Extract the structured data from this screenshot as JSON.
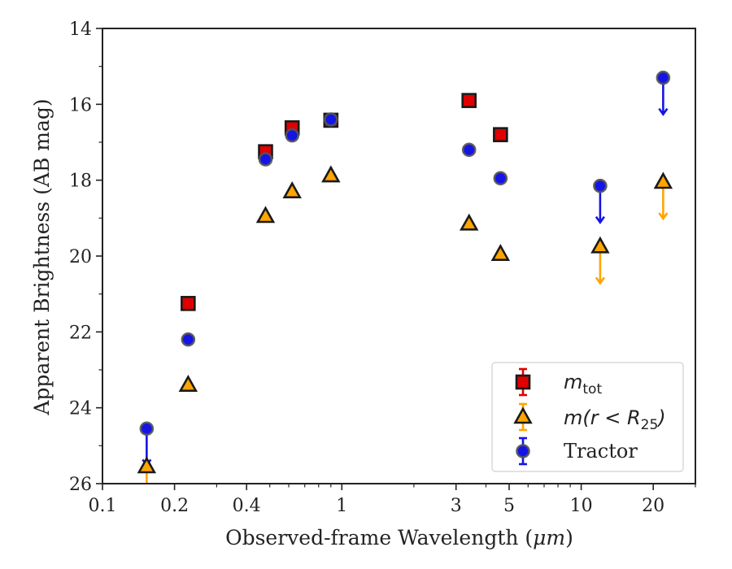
{
  "chart_data": {
    "type": "scatter",
    "xlabel_prefix": "Observed-frame Wavelength (",
    "xlabel_unit": "μm",
    "xlabel_suffix": ")",
    "ylabel": "Apparent Brightness (AB mag)",
    "xscale": "log",
    "xlim": [
      0.1,
      30
    ],
    "ylim": [
      26,
      14
    ],
    "y_inverted": true,
    "xticks": [
      {
        "value": 0.1,
        "label": "0.1"
      },
      {
        "value": 0.2,
        "label": "0.2"
      },
      {
        "value": 0.4,
        "label": "0.4"
      },
      {
        "value": 1,
        "label": "1"
      },
      {
        "value": 3,
        "label": "3"
      },
      {
        "value": 5,
        "label": "5"
      },
      {
        "value": 10,
        "label": "10"
      },
      {
        "value": 20,
        "label": "20"
      }
    ],
    "xminor": [
      0.3,
      0.5,
      0.6,
      0.7,
      0.8,
      0.9,
      2,
      4,
      6,
      7,
      8,
      9,
      30
    ],
    "yticks": [
      14,
      16,
      18,
      20,
      22,
      24,
      26
    ],
    "yminor": [
      15,
      17,
      19,
      21,
      23,
      25
    ],
    "grid": false,
    "legend_position": "lower-right",
    "series": [
      {
        "name": "m_tot",
        "legend_main": "m",
        "legend_sub": "tot",
        "marker": "square",
        "color": "#e00000",
        "edge": "#1a1a1a",
        "points": [
          {
            "x": 0.228,
            "y": 21.25
          },
          {
            "x": 0.48,
            "y": 17.25
          },
          {
            "x": 0.62,
            "y": 16.62
          },
          {
            "x": 0.9,
            "y": 16.42
          },
          {
            "x": 3.4,
            "y": 15.9
          },
          {
            "x": 4.6,
            "y": 16.8
          }
        ]
      },
      {
        "name": "m(r < R25)",
        "legend_main": "m(r < R",
        "legend_sub": "25",
        "legend_tail": ")",
        "marker": "triangle",
        "color": "#ffa500",
        "edge": "#1a1a1a",
        "points": [
          {
            "x": 0.153,
            "y": 25.55,
            "upper_limit": true
          },
          {
            "x": 0.228,
            "y": 23.4
          },
          {
            "x": 0.48,
            "y": 18.95
          },
          {
            "x": 0.62,
            "y": 18.3
          },
          {
            "x": 0.9,
            "y": 17.88
          },
          {
            "x": 3.4,
            "y": 19.15
          },
          {
            "x": 4.6,
            "y": 19.95
          },
          {
            "x": 12,
            "y": 19.75,
            "upper_limit": true
          },
          {
            "x": 22,
            "y": 18.05,
            "upper_limit": true
          }
        ]
      },
      {
        "name": "Tractor",
        "legend_main": "Tractor",
        "marker": "circle",
        "color": "#1414e6",
        "edge": "#555555",
        "points": [
          {
            "x": 0.153,
            "y": 24.55,
            "upper_limit": true
          },
          {
            "x": 0.228,
            "y": 22.2
          },
          {
            "x": 0.48,
            "y": 17.45
          },
          {
            "x": 0.62,
            "y": 16.82
          },
          {
            "x": 0.9,
            "y": 16.4
          },
          {
            "x": 3.4,
            "y": 17.2
          },
          {
            "x": 4.6,
            "y": 17.95
          },
          {
            "x": 12,
            "y": 18.15,
            "upper_limit": true
          },
          {
            "x": 22,
            "y": 15.3,
            "upper_limit": true
          }
        ]
      }
    ]
  }
}
